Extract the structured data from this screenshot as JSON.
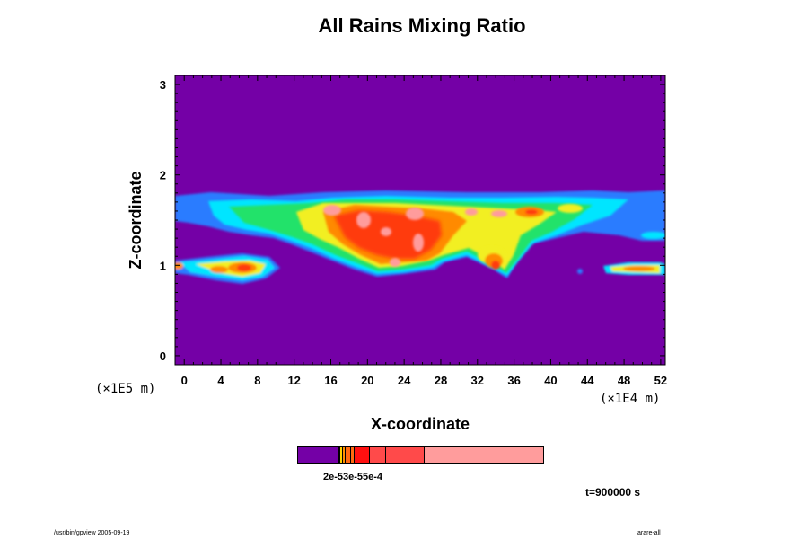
{
  "chart_data": {
    "type": "heatmap",
    "title": "All Rains Mixing Ratio",
    "xlabel": "X-coordinate",
    "ylabel": "Z-coordinate",
    "x_scale_note": "(×1E4 m)",
    "y_scale_note": "(×1E5 m)",
    "x_ticks": [
      0,
      4,
      8,
      12,
      16,
      20,
      24,
      28,
      32,
      36,
      40,
      44,
      48,
      52
    ],
    "y_ticks": [
      0,
      1,
      2,
      3
    ],
    "xlim": [
      -1,
      52.5
    ],
    "ylim": [
      -0.1,
      3.1
    ],
    "background_color": "#7400a6",
    "colorbar": {
      "colors": [
        "#7400a6",
        "#ffd000",
        "#ff9000",
        "#ff6a10",
        "#ff1010",
        "#ff4a4a",
        "#ff9c9c"
      ],
      "tick_text": "2e-53e-55e-4"
    },
    "time_label": "t=900000 s"
  },
  "footer": {
    "left": "/usr/bin/gpview 2005-09-19",
    "right": "arare-all"
  },
  "colors": {
    "violet": "#7400a6",
    "blue": "#2a7bff",
    "cyan": "#00e5ff",
    "green": "#21e26b",
    "yellow": "#f2ef24",
    "orange": "#ff8a00",
    "red": "#ff3a10",
    "pink": "#ff9c9c"
  }
}
